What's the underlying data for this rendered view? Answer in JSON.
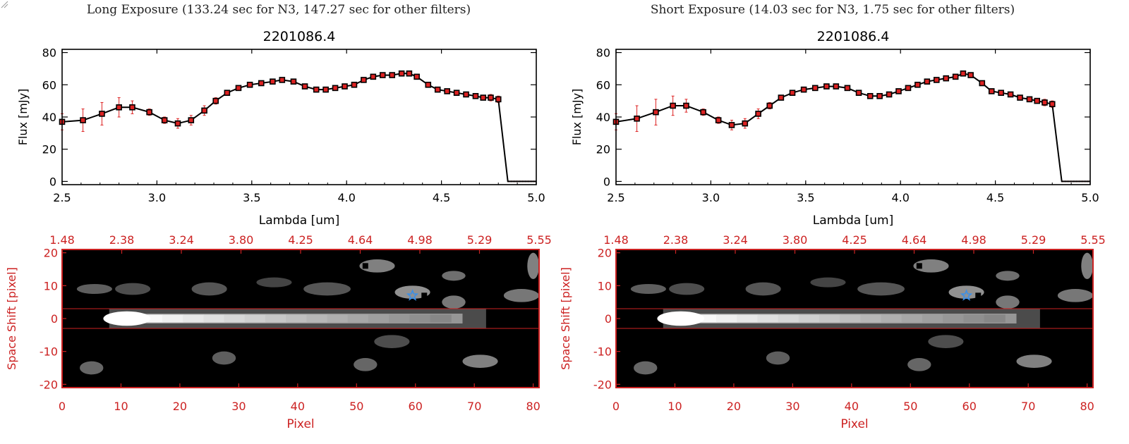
{
  "colors": {
    "accent_red": "#cc2222",
    "line": "#000000",
    "marker_face": "#dd2222",
    "star": "#3a8fe8"
  },
  "panels": [
    {
      "title": "Long Exposure (133.24 sec for N3, 147.27 sec for other filters)",
      "spectrum": {
        "id_label": "2201086.4",
        "xlabel": "Lambda [um]",
        "ylabel": "Flux [mJy]",
        "xticks": [
          "2.5",
          "3.0",
          "3.5",
          "4.0",
          "4.5",
          "5.0"
        ],
        "yticks": [
          "0",
          "20",
          "40",
          "60",
          "80"
        ]
      },
      "image": {
        "ylabel": "Space Shift [pixel]",
        "xlabel": "Pixel",
        "top_ticks": [
          "1.48",
          "2.38",
          "3.24",
          "3.80",
          "4.25",
          "4.64",
          "4.98",
          "5.29",
          "5.55"
        ],
        "xticks": [
          "0",
          "10",
          "20",
          "30",
          "40",
          "50",
          "60",
          "70",
          "80"
        ],
        "yticks": [
          "20",
          "10",
          "0",
          "-10",
          "-20"
        ]
      }
    },
    {
      "title": "Short Exposure (14.03 sec for N3, 1.75 sec for other filters)",
      "spectrum": {
        "id_label": "2201086.4",
        "xlabel": "Lambda [um]",
        "ylabel": "Flux [mJy]",
        "xticks": [
          "2.5",
          "3.0",
          "3.5",
          "4.0",
          "4.5",
          "5.0"
        ],
        "yticks": [
          "0",
          "20",
          "40",
          "60",
          "80"
        ]
      },
      "image": {
        "ylabel": "Space Shift [pixel]",
        "xlabel": "Pixel",
        "top_ticks": [
          "1.48",
          "2.38",
          "3.24",
          "3.80",
          "4.25",
          "4.64",
          "4.98",
          "5.29",
          "5.55"
        ],
        "xticks": [
          "0",
          "10",
          "20",
          "30",
          "40",
          "50",
          "60",
          "70",
          "80"
        ],
        "yticks": [
          "20",
          "10",
          "0",
          "-10",
          "-20"
        ]
      }
    }
  ],
  "chart_data": [
    {
      "type": "line",
      "title": "2201086.4",
      "xlabel": "Lambda [um]",
      "ylabel": "Flux [mJy]",
      "xlim": [
        2.5,
        5.0
      ],
      "ylim": [
        -2,
        82
      ],
      "series": [
        {
          "x": [
            2.5,
            2.61,
            2.71,
            2.8,
            2.87,
            2.96,
            3.04,
            3.11,
            3.18,
            3.25,
            3.31,
            3.37,
            3.43,
            3.49,
            3.55,
            3.61,
            3.66,
            3.72,
            3.78,
            3.84,
            3.89,
            3.94,
            3.99,
            4.04,
            4.09,
            4.14,
            4.19,
            4.24,
            4.29,
            4.33,
            4.37,
            4.43,
            4.48,
            4.53,
            4.58,
            4.63,
            4.68,
            4.72,
            4.76,
            4.8,
            4.85,
            5.0
          ],
          "y": [
            37,
            38,
            42,
            46,
            46,
            43,
            38,
            36,
            38,
            44,
            50,
            55,
            58,
            60,
            61,
            62,
            63,
            62,
            59,
            57,
            57,
            58,
            59,
            60,
            63,
            65,
            66,
            66,
            67,
            67,
            65,
            60,
            57,
            56,
            55,
            54,
            53,
            52,
            52,
            51,
            0,
            0
          ],
          "yerr": [
            5,
            7,
            7,
            6,
            4,
            2,
            2,
            3,
            3,
            3,
            2,
            1,
            1,
            1,
            1,
            1,
            1,
            1,
            1,
            1,
            1,
            1,
            1,
            1,
            1,
            1,
            1,
            1,
            1,
            1,
            1,
            1,
            1,
            1,
            1,
            1,
            1,
            1,
            2,
            2,
            0,
            0
          ]
        }
      ]
    },
    {
      "type": "heatmap",
      "xlabel": "Pixel",
      "ylabel": "Space Shift [pixel]",
      "xlim": [
        0,
        81
      ],
      "ylim": [
        -21,
        21
      ],
      "top_axis_ticks": [
        "1.48",
        "2.38",
        "3.24",
        "3.80",
        "4.25",
        "4.64",
        "4.98",
        "5.29",
        "5.55"
      ],
      "extraction_window": [
        -3,
        3
      ],
      "marker": {
        "shape": "star",
        "x": 59.5,
        "y": 7
      }
    },
    {
      "type": "line",
      "title": "2201086.4",
      "xlabel": "Lambda [um]",
      "ylabel": "Flux [mJy]",
      "xlim": [
        2.5,
        5.0
      ],
      "ylim": [
        -2,
        82
      ],
      "series": [
        {
          "x": [
            2.5,
            2.61,
            2.71,
            2.8,
            2.87,
            2.96,
            3.04,
            3.11,
            3.18,
            3.25,
            3.31,
            3.37,
            3.43,
            3.49,
            3.55,
            3.61,
            3.66,
            3.72,
            3.78,
            3.84,
            3.89,
            3.94,
            3.99,
            4.04,
            4.09,
            4.14,
            4.19,
            4.24,
            4.29,
            4.33,
            4.37,
            4.43,
            4.48,
            4.53,
            4.58,
            4.63,
            4.68,
            4.72,
            4.76,
            4.8,
            4.85,
            5.0
          ],
          "y": [
            37,
            39,
            43,
            47,
            47,
            43,
            38,
            35,
            36,
            42,
            47,
            52,
            55,
            57,
            58,
            59,
            59,
            58,
            55,
            53,
            53,
            54,
            56,
            58,
            60,
            62,
            63,
            64,
            65,
            67,
            66,
            61,
            56,
            55,
            54,
            52,
            51,
            50,
            49,
            48,
            0,
            0
          ],
          "yerr": [
            5,
            8,
            8,
            6,
            4,
            2,
            2,
            3,
            3,
            3,
            2,
            1,
            1,
            1,
            1,
            1,
            1,
            1,
            1,
            1,
            1,
            1,
            1,
            1,
            1,
            1,
            1,
            1,
            1,
            1,
            1,
            1,
            1,
            1,
            1,
            1,
            1,
            1,
            2,
            2,
            0,
            0
          ]
        }
      ]
    },
    {
      "type": "heatmap",
      "xlabel": "Pixel",
      "ylabel": "Space Shift [pixel]",
      "xlim": [
        0,
        81
      ],
      "ylim": [
        -21,
        21
      ],
      "top_axis_ticks": [
        "1.48",
        "2.38",
        "3.24",
        "3.80",
        "4.25",
        "4.64",
        "4.98",
        "5.29",
        "5.55"
      ],
      "extraction_window": [
        -3,
        3
      ],
      "marker": {
        "shape": "star",
        "x": 59.5,
        "y": 7
      }
    }
  ]
}
